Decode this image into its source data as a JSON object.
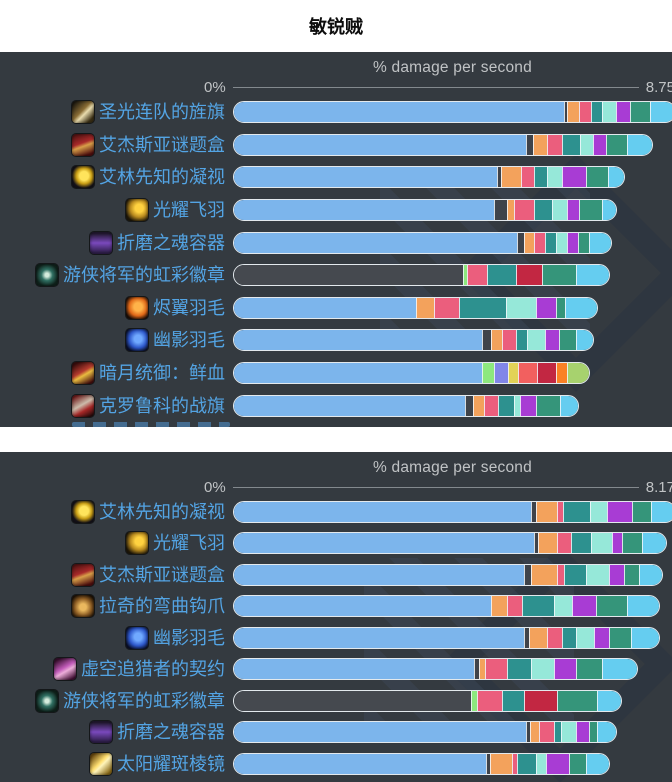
{
  "title": "敏锐贼",
  "colors": {
    "blue": "#7cb5ec",
    "dark": "#3f434a",
    "darkbar": "#45494f",
    "orange": "#f3a25c",
    "pink": "#eb5e7d",
    "teal": "#2d918f",
    "mint": "#96e8d9",
    "purple": "#a83cd4",
    "seagreen": "#35957a",
    "cyan": "#65cdf0",
    "lightgreen": "#8de87e",
    "periwinkle": "#8186e8",
    "yellow": "#e2d257",
    "salmon": "#f2605f",
    "crimson": "#c22742",
    "orange2": "#fa8125",
    "yellowgreen": "#a7d26e"
  },
  "panels": [
    {
      "axis": {
        "title": "% damage per second",
        "min_label": "0%",
        "max_label": "8.75"
      },
      "rows": [
        {
          "label": "圣光连队的旌旗",
          "icon": "gold-banner",
          "segments": [
            [
              "blue",
              330
            ],
            [
              "dark",
              3
            ],
            [
              "orange",
              12
            ],
            [
              "pink",
              12
            ],
            [
              "teal",
              11
            ],
            [
              "mint",
              14
            ],
            [
              "purple",
              14
            ],
            [
              "seagreen",
              20
            ],
            [
              "cyan",
              25
            ]
          ]
        },
        {
          "label": "艾杰斯亚谜题盒",
          "icon": "red-box",
          "segments": [
            [
              "blue",
              292
            ],
            [
              "dark",
              7
            ],
            [
              "orange",
              14
            ],
            [
              "pink",
              15
            ],
            [
              "teal",
              18
            ],
            [
              "mint",
              13
            ],
            [
              "purple",
              13
            ],
            [
              "seagreen",
              21
            ],
            [
              "cyan",
              25
            ]
          ]
        },
        {
          "label": "艾林先知的凝视",
          "icon": "yellow-eye",
          "segments": [
            [
              "blue",
              263
            ],
            [
              "dark",
              4
            ],
            [
              "orange",
              20
            ],
            [
              "pink",
              13
            ],
            [
              "teal",
              13
            ],
            [
              "mint",
              15
            ],
            [
              "purple",
              24
            ],
            [
              "seagreen",
              22
            ],
            [
              "cyan",
              16
            ]
          ]
        },
        {
          "label": "光耀飞羽",
          "icon": "gold-feather",
          "segments": [
            [
              "blue",
              260
            ],
            [
              "dark",
              13
            ],
            [
              "orange",
              7
            ],
            [
              "pink",
              20
            ],
            [
              "teal",
              18
            ],
            [
              "mint",
              15
            ],
            [
              "purple",
              12
            ],
            [
              "seagreen",
              23
            ],
            [
              "cyan",
              14
            ]
          ]
        },
        {
          "label": "折磨之魂容器",
          "icon": "purple-vial",
          "segments": [
            [
              "blue",
              283
            ],
            [
              "dark",
              7
            ],
            [
              "orange",
              10
            ],
            [
              "pink",
              11
            ],
            [
              "teal",
              11
            ],
            [
              "mint",
              11
            ],
            [
              "purple",
              11
            ],
            [
              "seagreen",
              11
            ],
            [
              "cyan",
              22
            ]
          ]
        },
        {
          "label": "游侠将军的虹彩徽章",
          "icon": "teal-badge",
          "segments": [
            [
              "darkbar",
              229
            ],
            [
              "lightgreen",
              4
            ],
            [
              "pink",
              20
            ],
            [
              "teal",
              29
            ],
            [
              "crimson",
              26
            ],
            [
              "seagreen",
              34
            ],
            [
              "cyan",
              33
            ]
          ]
        },
        {
          "label": "烬翼羽毛",
          "icon": "orange-feather",
          "segments": [
            [
              "blue",
              182
            ],
            [
              "orange",
              18
            ],
            [
              "pink",
              25
            ],
            [
              "teal",
              47
            ],
            [
              "mint",
              30
            ],
            [
              "purple",
              20
            ],
            [
              "seagreen",
              9
            ],
            [
              "cyan",
              32
            ]
          ]
        },
        {
          "label": "幽影羽毛",
          "icon": "blue-feather",
          "segments": [
            [
              "blue",
              248
            ],
            [
              "dark",
              9
            ],
            [
              "orange",
              11
            ],
            [
              "pink",
              14
            ],
            [
              "teal",
              11
            ],
            [
              "mint",
              18
            ],
            [
              "purple",
              14
            ],
            [
              "seagreen",
              17
            ],
            [
              "cyan",
              17
            ]
          ]
        },
        {
          "label": "暗月统御：鲜血",
          "icon": "red-card",
          "segments": [
            [
              "blue",
              248
            ],
            [
              "lightgreen",
              12
            ],
            [
              "periwinkle",
              14
            ],
            [
              "yellow",
              10
            ],
            [
              "salmon",
              19
            ],
            [
              "crimson",
              19
            ],
            [
              "orange2",
              11
            ],
            [
              "yellowgreen",
              22
            ]
          ]
        },
        {
          "label": "克罗鲁科的战旗",
          "icon": "red-banner",
          "segments": [
            [
              "blue",
              231
            ],
            [
              "dark",
              8
            ],
            [
              "orange",
              11
            ],
            [
              "pink",
              14
            ],
            [
              "teal",
              16
            ],
            [
              "mint",
              6
            ],
            [
              "purple",
              16
            ],
            [
              "seagreen",
              24
            ],
            [
              "cyan",
              18
            ]
          ]
        }
      ]
    },
    {
      "axis": {
        "title": "% damage per second",
        "min_label": "0%",
        "max_label": "8.17"
      },
      "rows": [
        {
          "label": "艾林先知的凝视",
          "icon": "yellow-eye",
          "segments": [
            [
              "blue",
              297
            ],
            [
              "dark",
              5
            ],
            [
              "orange",
              21
            ],
            [
              "pink",
              6
            ],
            [
              "teal",
              27
            ],
            [
              "mint",
              17
            ],
            [
              "purple",
              25
            ],
            [
              "seagreen",
              19
            ],
            [
              "cyan",
              24
            ]
          ]
        },
        {
          "label": "光耀飞羽",
          "icon": "gold-feather",
          "segments": [
            [
              "blue",
              300
            ],
            [
              "dark",
              4
            ],
            [
              "orange",
              19
            ],
            [
              "pink",
              14
            ],
            [
              "teal",
              20
            ],
            [
              "mint",
              21
            ],
            [
              "purple",
              10
            ],
            [
              "seagreen",
              20
            ],
            [
              "cyan",
              24
            ]
          ]
        },
        {
          "label": "艾杰斯亚谜题盒",
          "icon": "red-box",
          "segments": [
            [
              "blue",
              290
            ],
            [
              "dark",
              7
            ],
            [
              "orange",
              26
            ],
            [
              "pink",
              7
            ],
            [
              "teal",
              22
            ],
            [
              "mint",
              23
            ],
            [
              "purple",
              15
            ],
            [
              "seagreen",
              15
            ],
            [
              "cyan",
              23
            ]
          ]
        },
        {
          "label": "拉奇的弯曲钩爪",
          "icon": "gold-hook",
          "segments": [
            [
              "blue",
              257
            ],
            [
              "orange",
              16
            ],
            [
              "pink",
              15
            ],
            [
              "teal",
              32
            ],
            [
              "mint",
              18
            ],
            [
              "purple",
              24
            ],
            [
              "seagreen",
              31
            ],
            [
              "cyan",
              32
            ]
          ]
        },
        {
          "label": "幽影羽毛",
          "icon": "blue-feather",
          "segments": [
            [
              "blue",
              290
            ],
            [
              "dark",
              5
            ],
            [
              "orange",
              18
            ],
            [
              "pink",
              15
            ],
            [
              "teal",
              14
            ],
            [
              "mint",
              18
            ],
            [
              "purple",
              15
            ],
            [
              "seagreen",
              22
            ],
            [
              "cyan",
              28
            ]
          ]
        },
        {
          "label": "虚空追猎者的契约",
          "icon": "pink-card",
          "segments": [
            [
              "blue",
              240
            ],
            [
              "dark",
              5
            ],
            [
              "orange",
              6
            ],
            [
              "pink",
              22
            ],
            [
              "teal",
              24
            ],
            [
              "mint",
              23
            ],
            [
              "purple",
              22
            ],
            [
              "seagreen",
              26
            ],
            [
              "cyan",
              35
            ]
          ]
        },
        {
          "label": "游侠将军的虹彩徽章",
          "icon": "teal-badge",
          "segments": [
            [
              "darkbar",
              237
            ],
            [
              "lightgreen",
              6
            ],
            [
              "pink",
              25
            ],
            [
              "teal",
              22
            ],
            [
              "crimson",
              33
            ],
            [
              "seagreen",
              40
            ],
            [
              "cyan",
              24
            ]
          ]
        },
        {
          "label": "折磨之魂容器",
          "icon": "purple-vial",
          "segments": [
            [
              "blue",
              292
            ],
            [
              "dark",
              4
            ],
            [
              "orange",
              9
            ],
            [
              "pink",
              15
            ],
            [
              "teal",
              7
            ],
            [
              "mint",
              15
            ],
            [
              "purple",
              13
            ],
            [
              "seagreen",
              8
            ],
            [
              "cyan",
              19
            ]
          ]
        },
        {
          "label": "太阳耀斑棱镜",
          "icon": "gold-prism",
          "segments": [
            [
              "blue",
              252
            ],
            [
              "dark",
              4
            ],
            [
              "orange",
              22
            ],
            [
              "pink",
              5
            ],
            [
              "teal",
              19
            ],
            [
              "mint",
              10
            ],
            [
              "purple",
              23
            ],
            [
              "seagreen",
              17
            ],
            [
              "cyan",
              23
            ]
          ]
        }
      ]
    }
  ],
  "chart_data": [
    {
      "type": "bar",
      "orientation": "horizontal-stacked",
      "title": "% damage per second",
      "xlabel": "% damage per second",
      "axis_range": [
        0,
        8.75
      ],
      "axis_tick_labels": [
        "0%",
        "8.75"
      ],
      "categories": [
        "圣光连队的旌旗",
        "艾杰斯亚谜题盒",
        "艾林先知的凝视",
        "光耀飞羽",
        "折磨之魂容器",
        "游侠将军的虹彩徽章",
        "烬翼羽毛",
        "幽影羽毛",
        "暗月统御：鲜血",
        "克罗鲁科的战旗"
      ],
      "estimated_totals_pct": [
        8.75,
        8.33,
        7.77,
        7.61,
        7.51,
        7.47,
        7.23,
        7.15,
        7.06,
        6.88
      ],
      "note": "each bar is stacked colored segments (item-level steps); first long segment is the base value"
    },
    {
      "type": "bar",
      "orientation": "horizontal-stacked",
      "title": "% damage per second",
      "xlabel": "% damage per second",
      "axis_range": [
        0,
        8.17
      ],
      "axis_tick_labels": [
        "0%",
        "8.17"
      ],
      "categories": [
        "艾林先知的凝视",
        "光耀飞羽",
        "艾杰斯亚谜题盒",
        "拉奇的弯曲钩爪",
        "幽影羽毛",
        "虚空追猎者的契约",
        "游侠将军的虹彩徽章",
        "折磨之魂容器",
        "太阳耀斑棱镜"
      ],
      "estimated_totals_pct": [
        8.17,
        8.0,
        7.93,
        7.87,
        7.87,
        7.47,
        7.17,
        7.08,
        6.95
      ],
      "note": "each bar is stacked colored segments (item-level steps); first long segment is the base value"
    }
  ]
}
